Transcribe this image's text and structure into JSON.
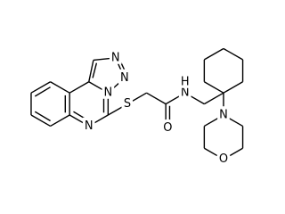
{
  "molecule": {
    "atom_labels": [
      "N",
      "N",
      "N",
      "N",
      "S",
      "O",
      "N",
      "H",
      "N",
      "O"
    ]
  }
}
